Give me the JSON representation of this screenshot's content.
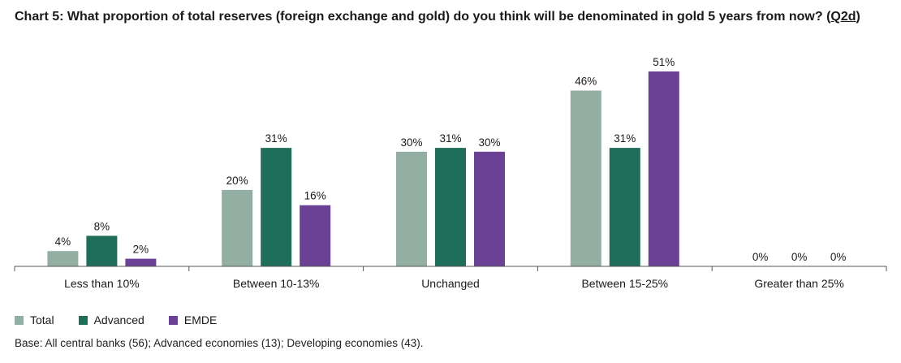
{
  "title": {
    "prefix": "Chart 5: What proportion of total reserves (foreign exchange and gold) do you think will be denominated in gold 5 years from now? (",
    "code": "Q2d",
    "suffix": ")"
  },
  "colors": {
    "Total": "#93afa3",
    "Advanced": "#1e6e5a",
    "EMDE": "#6b4196"
  },
  "chart_data": {
    "type": "bar",
    "title": "Chart 5: What proportion of total reserves (foreign exchange and gold) do you think will be denominated in gold 5 years from now? (Q2d)",
    "categories": [
      "Less than 10%",
      "Between 10-13%",
      "Unchanged",
      "Between 15-25%",
      "Greater than 25%"
    ],
    "series": [
      {
        "name": "Total",
        "values": [
          4,
          20,
          30,
          46,
          0
        ]
      },
      {
        "name": "Advanced",
        "values": [
          8,
          31,
          31,
          31,
          0
        ]
      },
      {
        "name": "EMDE",
        "values": [
          2,
          16,
          30,
          51,
          0
        ]
      }
    ],
    "value_suffix": "%",
    "xlabel": "",
    "ylabel": "",
    "ylim": [
      0,
      51
    ],
    "grid": false,
    "legend": "bottom-left"
  },
  "footnote": "Base: All central banks (56); Advanced economies (13); Developing economies (43)."
}
